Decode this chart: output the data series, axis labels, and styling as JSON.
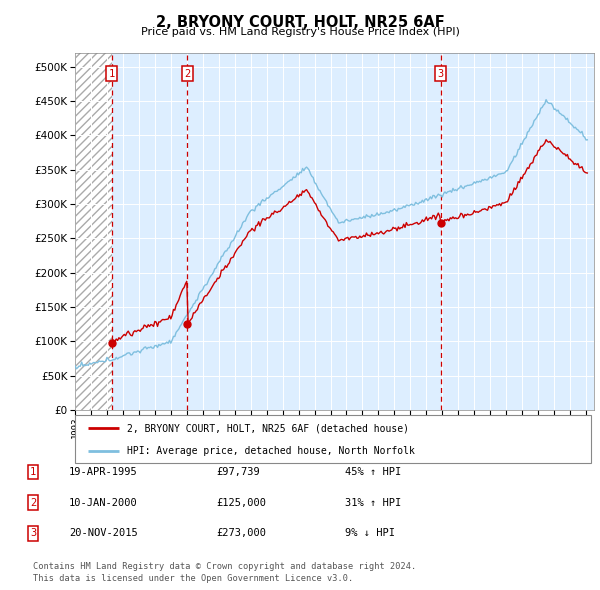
{
  "title": "2, BRYONY COURT, HOLT, NR25 6AF",
  "subtitle": "Price paid vs. HM Land Registry's House Price Index (HPI)",
  "legend_label_red": "2, BRYONY COURT, HOLT, NR25 6AF (detached house)",
  "legend_label_blue": "HPI: Average price, detached house, North Norfolk",
  "transactions": [
    {
      "num": 1,
      "date": "19-APR-1995",
      "price": 97739,
      "pct": "45%",
      "dir": "↑",
      "year": 1995.29
    },
    {
      "num": 2,
      "date": "10-JAN-2000",
      "price": 125000,
      "pct": "31%",
      "dir": "↑",
      "year": 2000.03
    },
    {
      "num": 3,
      "date": "20-NOV-2015",
      "price": 273000,
      "pct": "9%",
      "dir": "↓",
      "year": 2015.89
    }
  ],
  "footer": "Contains HM Land Registry data © Crown copyright and database right 2024.\nThis data is licensed under the Open Government Licence v3.0.",
  "ylim": [
    0,
    520000
  ],
  "yticks": [
    0,
    50000,
    100000,
    150000,
    200000,
    250000,
    300000,
    350000,
    400000,
    450000,
    500000
  ],
  "hpi_color": "#7fbfdf",
  "price_color": "#cc0000",
  "vline_color": "#cc0000",
  "hatch_color": "#c8d8e8",
  "between_color": "#ddeeff"
}
